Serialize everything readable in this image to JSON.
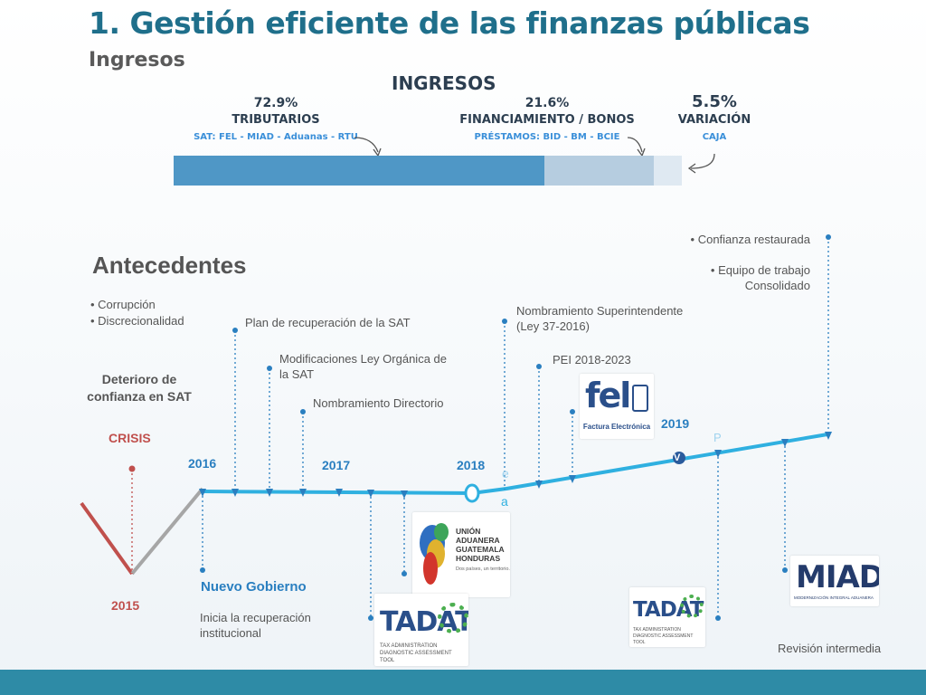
{
  "title": "1. Gestión eficiente de las finanzas públicas",
  "subtitle": "Ingresos",
  "ingresos": {
    "heading": "INGRESOS",
    "segments": [
      {
        "pct": "72.9%",
        "label": "TRIBUTARIOS",
        "source": "SAT: FEL - MIAD - Aduanas - RTU",
        "value": 72.9,
        "color": "#4f97c6"
      },
      {
        "pct": "21.6%",
        "label": "FINANCIAMIENTO / BONOS",
        "source": "PRÉSTAMOS: BID - BM - BCIE",
        "value": 21.6,
        "color": "#b6cde0"
      },
      {
        "pct": "5.5%",
        "label": "VARIACIÓN",
        "source": "CAJA",
        "value": 5.5,
        "color": "#dfe9f2"
      }
    ]
  },
  "antecedentes": {
    "heading": "Antecedentes",
    "bullets": [
      "• Corrupción",
      "• Discrecionalidad"
    ],
    "deterioro": "Deterioro de confianza en SAT",
    "crisis": "CRISIS",
    "year_crisis": "2015"
  },
  "timeline": {
    "years": {
      "y2016": "2016",
      "y2017": "2017",
      "y2018": "2018",
      "y2019": "2019"
    },
    "events": {
      "plan": "Plan de recuperación de la SAT",
      "modif": "Modificaciones Ley Orgánica de la SAT",
      "directorio": "Nombramiento Directorio",
      "superintendente": "Nombramiento Superintendente (Ley 37-2016)",
      "pei": "PEI 2018-2023",
      "confianza": "• Confianza restaurada",
      "equipo": "• Equipo de trabajo Consolidado",
      "nuevo_gobierno": "Nuevo Gobierno",
      "inicia": "Inicia la recuperación institucional",
      "revision": "Revisión intermedia"
    },
    "fragments": {
      "e": "e",
      "a": "a",
      "p": "P",
      "v": "V"
    }
  },
  "logos": {
    "tadat": {
      "word": "TADAT",
      "sub": "TAX ADMINISTRATION DIAGNOSTIC ASSESSMENT TOOL"
    },
    "miad": {
      "word": "MIAD",
      "sub": "MODERNIZACIÓN INTEGRAL ADUANERA"
    },
    "fel": {
      "word": "fel",
      "sub": "Factura Electrónica"
    },
    "union": {
      "word": "UNIÓN ADUANERA GUATEMALA HONDURAS",
      "sub": "Dos países, un territorio."
    }
  },
  "colors": {
    "title": "#1f6f8b",
    "timeline": "#2fb0e0",
    "crisis_left": "#c0504d",
    "crisis_right": "#a6a6a6",
    "footer": "#2e8ba6"
  }
}
